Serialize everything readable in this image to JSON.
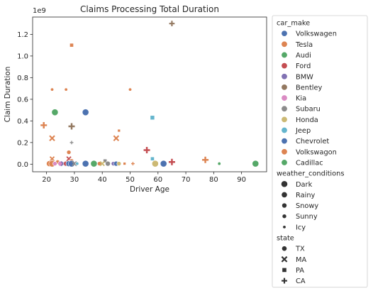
{
  "chart_data": {
    "type": "scatter",
    "title": "Claims Processing Total Duration",
    "xlabel": "Driver Age",
    "ylabel": "Claim Duration",
    "y_offset_label": "1e9",
    "xlim": [
      15,
      99
    ],
    "ylim": [
      -0.07,
      1.36
    ],
    "x_ticks": [
      20,
      30,
      40,
      50,
      60,
      70,
      80,
      90
    ],
    "y_ticks": [
      0.0,
      0.2,
      0.4,
      0.6,
      0.8,
      1.0,
      1.2
    ],
    "y_tick_labels": [
      "0.0",
      "0.2",
      "0.4",
      "0.6",
      "0.8",
      "1.0",
      "1.2"
    ],
    "grid": false,
    "legend_placement": "outside-right",
    "hue": {
      "title": "car_make",
      "entries": [
        {
          "name": "Volkswagen",
          "color": "#4c72b0"
        },
        {
          "name": "Tesla",
          "color": "#dd8452"
        },
        {
          "name": "Audi",
          "color": "#55a868"
        },
        {
          "name": "Ford",
          "color": "#c44e52"
        },
        {
          "name": "BMW",
          "color": "#8172b3"
        },
        {
          "name": "Bentley",
          "color": "#937860"
        },
        {
          "name": "Kia",
          "color": "#da8bc3"
        },
        {
          "name": "Subaru",
          "color": "#8c8c8c"
        },
        {
          "name": "Honda",
          "color": "#ccb974"
        },
        {
          "name": "Jeep",
          "color": "#64b5cd"
        },
        {
          "name": "Chevrolet",
          "color": "#4c72b0"
        },
        {
          "name": "Volkswagon",
          "color": "#dd8452"
        },
        {
          "name": "Cadillac",
          "color": "#55a868"
        }
      ]
    },
    "size": {
      "title": "weather_conditions",
      "entries": [
        {
          "name": "Dark",
          "radius": 4.6
        },
        {
          "name": "Rainy",
          "radius": 4.1
        },
        {
          "name": "Snowy",
          "radius": 3.5
        },
        {
          "name": "Sunny",
          "radius": 3.0
        },
        {
          "name": "Icy",
          "radius": 2.2
        }
      ]
    },
    "style": {
      "title": "state",
      "entries": [
        {
          "name": "TX",
          "marker": "circle"
        },
        {
          "name": "MA",
          "marker": "x"
        },
        {
          "name": "PA",
          "marker": "square"
        },
        {
          "name": "CA",
          "marker": "plus"
        }
      ]
    },
    "points": [
      {
        "x": 65,
        "y": 1.3,
        "make": "Bentley",
        "weather": "Snowy",
        "state": "CA"
      },
      {
        "x": 29,
        "y": 1.1,
        "make": "Tesla",
        "weather": "Sunny",
        "state": "PA"
      },
      {
        "x": 22,
        "y": 0.69,
        "make": "Tesla",
        "weather": "Icy",
        "state": "TX"
      },
      {
        "x": 27,
        "y": 0.69,
        "make": "Tesla",
        "weather": "Icy",
        "state": "TX"
      },
      {
        "x": 50,
        "y": 0.69,
        "make": "Tesla",
        "weather": "Icy",
        "state": "TX"
      },
      {
        "x": 23,
        "y": 0.48,
        "make": "Audi",
        "weather": "Dark",
        "state": "TX"
      },
      {
        "x": 34,
        "y": 0.48,
        "make": "Volkswagen",
        "weather": "Dark",
        "state": "TX"
      },
      {
        "x": 58,
        "y": 0.43,
        "make": "Jeep",
        "weather": "Snowy",
        "state": "PA"
      },
      {
        "x": 19,
        "y": 0.36,
        "make": "Tesla",
        "weather": "Rainy",
        "state": "CA"
      },
      {
        "x": 29,
        "y": 0.35,
        "make": "Bentley",
        "weather": "Rainy",
        "state": "CA"
      },
      {
        "x": 46,
        "y": 0.31,
        "make": "Tesla",
        "weather": "Icy",
        "state": "PA"
      },
      {
        "x": 22,
        "y": 0.24,
        "make": "Tesla",
        "weather": "Snowy",
        "state": "MA"
      },
      {
        "x": 45,
        "y": 0.24,
        "make": "Tesla",
        "weather": "Snowy",
        "state": "MA"
      },
      {
        "x": 29,
        "y": 0.2,
        "make": "Subaru",
        "weather": "Icy",
        "state": "CA"
      },
      {
        "x": 56,
        "y": 0.13,
        "make": "Ford",
        "weather": "Rainy",
        "state": "CA"
      },
      {
        "x": 28,
        "y": 0.11,
        "make": "Tesla",
        "weather": "Sunny",
        "state": "TX"
      },
      {
        "x": 22,
        "y": 0.05,
        "make": "Tesla",
        "weather": "Sunny",
        "state": "MA"
      },
      {
        "x": 28,
        "y": 0.05,
        "make": "Ford",
        "weather": "Sunny",
        "state": "MA"
      },
      {
        "x": 58,
        "y": 0.05,
        "make": "Jeep",
        "weather": "Sunny",
        "state": "PA"
      },
      {
        "x": 77,
        "y": 0.04,
        "make": "Tesla",
        "weather": "Rainy",
        "state": "CA"
      },
      {
        "x": 41,
        "y": 0.03,
        "make": "Subaru",
        "weather": "Sunny",
        "state": "PA"
      },
      {
        "x": 24,
        "y": 0.02,
        "make": "Tesla",
        "weather": "Sunny",
        "state": "TX"
      },
      {
        "x": 29,
        "y": 0.03,
        "make": "Tesla",
        "weather": "Sunny",
        "state": "TX"
      },
      {
        "x": 65,
        "y": 0.02,
        "make": "Ford",
        "weather": "Rainy",
        "state": "CA"
      },
      {
        "x": 21,
        "y": 0.005,
        "make": "Tesla",
        "weather": "Rainy",
        "state": "TX"
      },
      {
        "x": 22,
        "y": 0.005,
        "make": "Tesla",
        "weather": "Dark",
        "state": "TX"
      },
      {
        "x": 23,
        "y": 0.005,
        "make": "Kia",
        "weather": "Sunny",
        "state": "TX"
      },
      {
        "x": 25,
        "y": 0.005,
        "make": "Kia",
        "weather": "Snowy",
        "state": "TX"
      },
      {
        "x": 26,
        "y": 0.005,
        "make": "BMW",
        "weather": "Sunny",
        "state": "MA"
      },
      {
        "x": 27,
        "y": 0.005,
        "make": "Ford",
        "weather": "Snowy",
        "state": "TX"
      },
      {
        "x": 28,
        "y": 0.005,
        "make": "Volkswagen",
        "weather": "Rainy",
        "state": "TX"
      },
      {
        "x": 29,
        "y": 0.005,
        "make": "Volkswagen",
        "weather": "Dark",
        "state": "TX"
      },
      {
        "x": 30,
        "y": 0.005,
        "make": "Subaru",
        "weather": "Sunny",
        "state": "MA"
      },
      {
        "x": 31,
        "y": 0.005,
        "make": "Jeep",
        "weather": "Icy",
        "state": "TX"
      },
      {
        "x": 34,
        "y": 0.005,
        "make": "Volkswagen",
        "weather": "Dark",
        "state": "TX"
      },
      {
        "x": 37,
        "y": 0.005,
        "make": "Audi",
        "weather": "Dark",
        "state": "TX"
      },
      {
        "x": 39,
        "y": 0.005,
        "make": "Tesla",
        "weather": "Sunny",
        "state": "TX"
      },
      {
        "x": 40,
        "y": 0.005,
        "make": "Honda",
        "weather": "Sunny",
        "state": "MA"
      },
      {
        "x": 42,
        "y": 0.005,
        "make": "Subaru",
        "weather": "Snowy",
        "state": "TX"
      },
      {
        "x": 44,
        "y": 0.005,
        "make": "BMW",
        "weather": "Sunny",
        "state": "TX"
      },
      {
        "x": 45,
        "y": 0.005,
        "make": "Volkswagen",
        "weather": "Snowy",
        "state": "TX"
      },
      {
        "x": 46,
        "y": 0.005,
        "make": "Honda",
        "weather": "Sunny",
        "state": "TX"
      },
      {
        "x": 48,
        "y": 0.005,
        "make": "Tesla",
        "weather": "Icy",
        "state": "PA"
      },
      {
        "x": 51,
        "y": 0.005,
        "make": "Tesla",
        "weather": "Icy",
        "state": "CA"
      },
      {
        "x": 59,
        "y": 0.005,
        "make": "Honda",
        "weather": "Dark",
        "state": "TX"
      },
      {
        "x": 62,
        "y": 0.005,
        "make": "Volkswagen",
        "weather": "Dark",
        "state": "TX"
      },
      {
        "x": 82,
        "y": 0.005,
        "make": "Audi",
        "weather": "Icy",
        "state": "TX"
      },
      {
        "x": 95,
        "y": 0.005,
        "make": "Audi",
        "weather": "Dark",
        "state": "TX"
      }
    ]
  }
}
